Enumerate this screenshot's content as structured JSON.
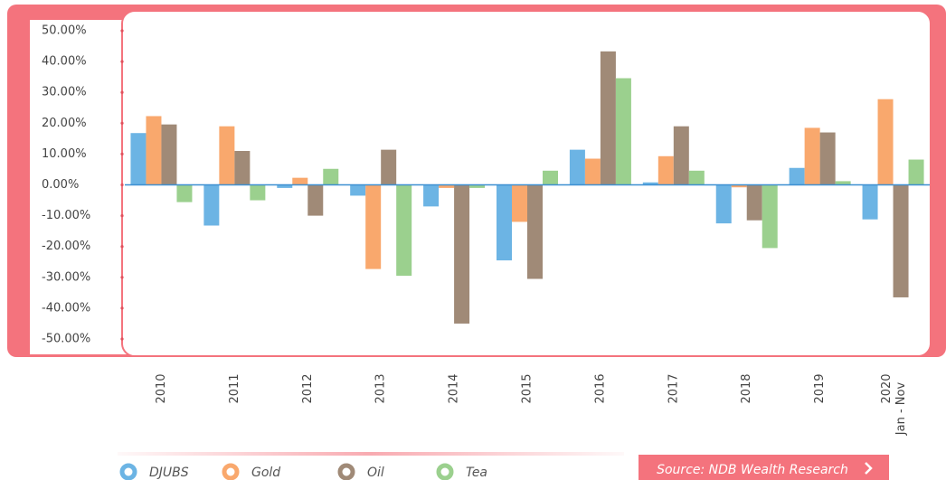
{
  "chart_data": {
    "type": "bar",
    "categories": [
      "2010",
      "2011",
      "2012",
      "2013",
      "2014",
      "2015",
      "2016",
      "2017",
      "2018",
      "2019",
      "2020"
    ],
    "last_category_note": "Jan - Nov",
    "series": [
      {
        "name": "DJUBS",
        "color": "#6cb4e4",
        "values": [
          16.8,
          -13.2,
          -1.0,
          -3.5,
          -7.0,
          -24.5,
          11.4,
          0.8,
          -12.5,
          5.5,
          -11.2
        ]
      },
      {
        "name": "Gold",
        "color": "#f9a86d",
        "values": [
          22.3,
          19.0,
          2.3,
          -27.3,
          -1.0,
          -12.0,
          8.5,
          9.3,
          -0.8,
          18.5,
          27.8
        ]
      },
      {
        "name": "Oil",
        "color": "#a08a77",
        "values": [
          19.6,
          11.0,
          -10.0,
          11.4,
          -45.0,
          -30.5,
          43.3,
          19.0,
          -11.5,
          17.0,
          -36.5
        ]
      },
      {
        "name": "Tea",
        "color": "#9bd08e",
        "values": [
          -5.6,
          -5.0,
          5.2,
          -29.5,
          -1.0,
          4.6,
          34.6,
          4.6,
          -20.5,
          1.2,
          8.2
        ]
      }
    ],
    "ylim": [
      -50,
      50
    ],
    "yticks": [
      {
        "value": 50,
        "label": "50.00%"
      },
      {
        "value": 40,
        "label": "40.00%"
      },
      {
        "value": 30,
        "label": "30.00%"
      },
      {
        "value": 20,
        "label": "20.00%"
      },
      {
        "value": 10,
        "label": "10.00%"
      },
      {
        "value": 0,
        "label": "0.00%"
      },
      {
        "value": -10,
        "label": "-10.00%"
      },
      {
        "value": -20,
        "label": "-20.00%"
      },
      {
        "value": -30,
        "label": "-30.00%"
      },
      {
        "value": -40,
        "label": "-40.00%"
      },
      {
        "value": -50,
        "label": "-50.00%"
      }
    ],
    "source": "Source: NDB Wealth Research"
  }
}
